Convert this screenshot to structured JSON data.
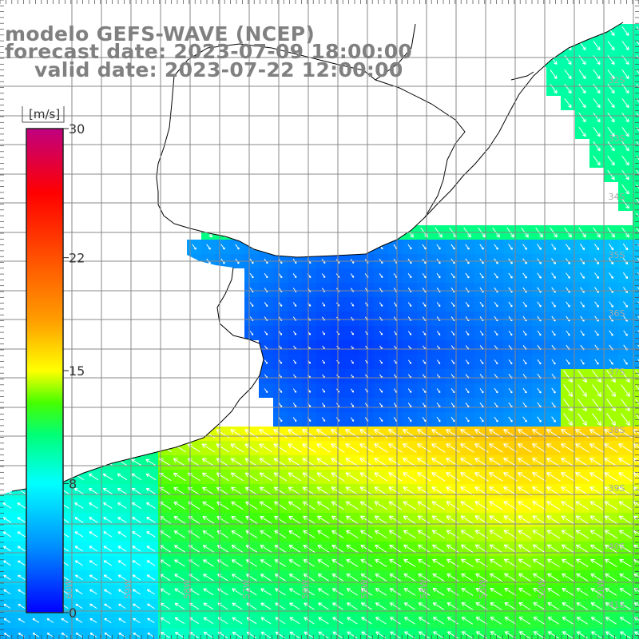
{
  "header": {
    "model_line": "modelo GEFS-WAVE (NCEP)",
    "forecast_line": "forecast date: 2023-07-09 18:00:00",
    "valid_line": "valid date: 2023-07-22 12:00:00"
  },
  "colorbar": {
    "unit": "[m/s]",
    "ticks": [
      "30",
      "22",
      "15",
      "8",
      "0"
    ],
    "values": [
      30,
      22,
      15,
      8,
      0
    ],
    "colors": [
      "#0000ff",
      "#00a0ff",
      "#00ffff",
      "#00ff80",
      "#40ff00",
      "#ffff00",
      "#ffa000",
      "#ff5000",
      "#ff0000",
      "#ff0060",
      "#c00080"
    ]
  },
  "map": {
    "lat_labels": [
      "32S",
      "33S",
      "34S",
      "35S",
      "36S",
      "37S",
      "38S",
      "39S",
      "40S",
      "41S"
    ],
    "lon_labels": [
      "60W",
      "59W",
      "58W",
      "57W",
      "56W",
      "55W",
      "54W",
      "53W",
      "52W",
      "51W"
    ],
    "land_color": "#ffffff",
    "grid_color": "#808080",
    "arrow_color": "#ffffff"
  }
}
